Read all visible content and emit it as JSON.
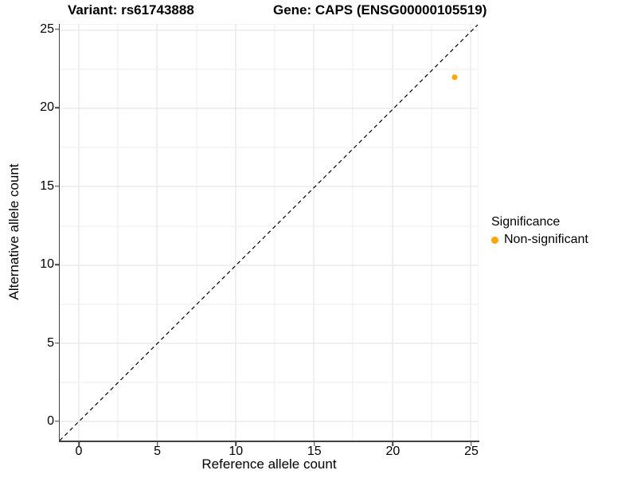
{
  "figure": {
    "titles": {
      "variant": "Variant: rs61743888",
      "gene": "Gene: CAPS (ENSG00000105519)"
    }
  },
  "axes": {
    "x": {
      "label": "Reference allele count",
      "tick_labels": [
        "0",
        "5",
        "10",
        "15",
        "20",
        "25"
      ]
    },
    "y": {
      "label": "Alternative allele count",
      "tick_labels_top_to_bottom": [
        "25",
        "20",
        "15",
        "10",
        "5",
        "0"
      ]
    }
  },
  "legend": {
    "title": "Significance",
    "entries": [
      {
        "label": "Non-significant",
        "color": "#FFA500"
      }
    ]
  },
  "colors": {
    "background": "#FFFFFF",
    "grid_major": "#E2E2E2",
    "grid_minor": "#EDEDED",
    "axis_line": "#404040",
    "point": "#FFA500",
    "reference_line": "#000000",
    "text": "#000000"
  },
  "chart_data": {
    "type": "scatter",
    "title": "Variant: rs61743888 | Gene: CAPS (ENSG00000105519)",
    "xlabel": "Reference allele count",
    "ylabel": "Alternative allele count",
    "xlim": [
      -1.25,
      25.4
    ],
    "ylim": [
      -1.25,
      25.4
    ],
    "x_ticks": [
      0,
      5,
      10,
      15,
      20,
      25
    ],
    "y_ticks": [
      0,
      5,
      10,
      15,
      20,
      25
    ],
    "x_minor_ticks": [
      2.5,
      7.5,
      12.5,
      17.5,
      22.5
    ],
    "y_minor_ticks": [
      2.5,
      7.5,
      12.5,
      17.5,
      22.5
    ],
    "grid": "major and minor gridlines, light gray on white",
    "legend_position": "right",
    "series": [
      {
        "name": "Non-significant",
        "color": "#FFA500",
        "points": [
          {
            "x": 24,
            "y": 22
          }
        ]
      }
    ],
    "reference_line": {
      "description": "identity line y = x",
      "slope": 1,
      "intercept": 0,
      "style": "dashed",
      "color": "#000000"
    }
  }
}
